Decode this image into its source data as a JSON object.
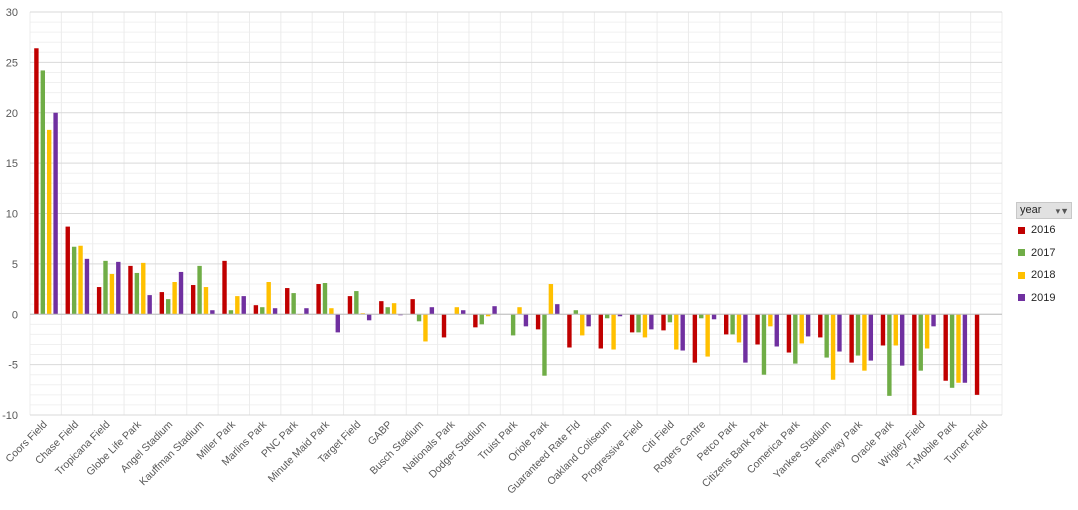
{
  "legend": {
    "title": "year",
    "filter_icon": "filter-dropdown-icon"
  },
  "chart_data": {
    "type": "bar",
    "title": "",
    "xlabel": "",
    "ylabel": "",
    "ylim": [
      -10,
      30
    ],
    "yticks": [
      -10,
      -5,
      0,
      5,
      10,
      15,
      20,
      25,
      30
    ],
    "grid": true,
    "legend_position": "right",
    "categories": [
      "Coors Field",
      "Chase Field",
      "Tropicana Field",
      "Globe Life Park",
      "Angel Stadium",
      "Kauffman Stadium",
      "Miller Park",
      "Marlins Park",
      "PNC Park",
      "Minute Maid Park",
      "Target Field",
      "GABP",
      "Busch Stadium",
      "Nationals Park",
      "Dodger Stadium",
      "Truist Park",
      "Oriole Park",
      "Guaranteed Rate Fld",
      "Oakland Coliseum",
      "Progressive Field",
      "Citi Field",
      "Rogers Centre",
      "Petco Park",
      "Citizens Bank Park",
      "Comerica Park",
      "Yankee Stadium",
      "Fenway Park",
      "Oracle Park",
      "Wrigley Field",
      "T-Mobile Park",
      "Turner Field"
    ],
    "series": [
      {
        "name": "2016",
        "color": "#c00000",
        "values": [
          26.4,
          8.7,
          2.7,
          4.8,
          2.2,
          2.9,
          5.3,
          0.9,
          2.6,
          3.0,
          1.8,
          1.3,
          1.5,
          -2.3,
          -1.3,
          null,
          -1.5,
          -3.3,
          -3.4,
          -1.8,
          -1.6,
          -4.8,
          -2.0,
          -3.0,
          -3.8,
          -2.3,
          -4.8,
          -3.1,
          -10.0,
          -6.6,
          -8.0
        ]
      },
      {
        "name": "2017",
        "color": "#70ad47",
        "values": [
          24.2,
          6.7,
          5.3,
          4.1,
          1.5,
          4.8,
          0.4,
          0.7,
          2.1,
          3.1,
          2.3,
          0.7,
          -0.7,
          null,
          -1.0,
          -2.1,
          -6.1,
          0.4,
          -0.4,
          -1.8,
          -0.8,
          -0.4,
          -2.0,
          -6.0,
          -4.9,
          -4.3,
          -4.1,
          -8.1,
          -5.6,
          -7.3,
          null
        ]
      },
      {
        "name": "2018",
        "color": "#ffc000",
        "values": [
          18.3,
          6.8,
          4.0,
          5.1,
          3.2,
          2.7,
          1.8,
          3.2,
          0.0,
          0.6,
          0.1,
          1.1,
          -2.7,
          0.7,
          -0.2,
          0.7,
          3.0,
          -2.1,
          -3.5,
          -2.3,
          -3.5,
          -4.2,
          -2.8,
          -1.2,
          -2.9,
          -6.5,
          -5.6,
          -3.1,
          -3.4,
          -6.8,
          null
        ]
      },
      {
        "name": "2019",
        "color": "#7030a0",
        "values": [
          20.0,
          5.5,
          5.2,
          1.9,
          4.2,
          0.4,
          1.8,
          0.6,
          0.6,
          -1.8,
          -0.6,
          -0.1,
          0.7,
          0.4,
          0.8,
          -1.2,
          1.0,
          -1.2,
          -0.2,
          -1.5,
          -3.6,
          -0.5,
          -4.8,
          -3.2,
          -2.2,
          -3.7,
          -4.6,
          -5.1,
          -1.2,
          -6.8,
          null
        ]
      }
    ]
  }
}
